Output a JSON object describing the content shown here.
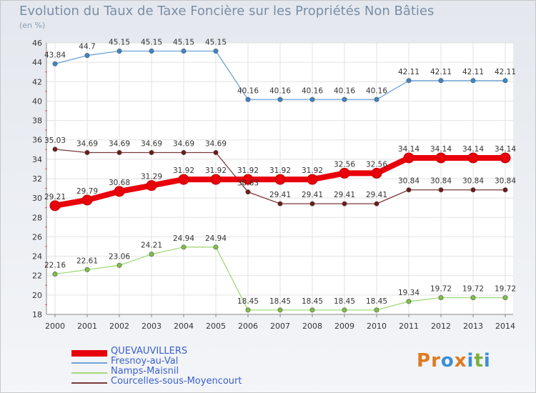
{
  "title": "Evolution du Taux de Taxe Foncière sur les Propriétés Non Bâties",
  "unit_label": "(en %)",
  "logo": {
    "text": "Proxiti",
    "letters": [
      "P",
      "r",
      "o",
      "x",
      "i",
      "t",
      "i"
    ],
    "colors": [
      "#e07a1f",
      "#e07a1f",
      "#3c8fd4",
      "#e07a1f",
      "#3c8fd4",
      "#7ab03a",
      "#3c8fd4"
    ]
  },
  "chart_data": {
    "type": "line",
    "title": "Evolution du Taux de Taxe Foncière sur les Propriétés Non Bâties",
    "ylabel": "(en %)",
    "xlabel": "",
    "ylim": [
      18,
      46
    ],
    "yticks": [
      18,
      20,
      22,
      24,
      26,
      28,
      30,
      32,
      34,
      36,
      38,
      40,
      42,
      44,
      46
    ],
    "categories": [
      "2000",
      "2001",
      "2002",
      "2003",
      "2004",
      "2005",
      "2006",
      "2007",
      "2008",
      "2009",
      "2010",
      "2011",
      "2012",
      "2013",
      "2014"
    ],
    "grid": true,
    "series": [
      {
        "name": "QUEVAUVILLERS",
        "color": "#e8000b",
        "marker": "#e8000b",
        "values": [
          29.21,
          29.79,
          30.68,
          31.29,
          31.92,
          31.92,
          31.92,
          31.92,
          31.92,
          32.56,
          32.56,
          34.14,
          34.14,
          34.14,
          34.14
        ],
        "labels": [
          "29.21",
          "29.79",
          "30.68",
          "31.29",
          "31.92",
          "31.92",
          "31.92",
          "31.92",
          "31.92",
          "32.56",
          "32.56",
          "34.14",
          "34.14",
          "34.14",
          "34.14"
        ]
      },
      {
        "name": "Fresnoy-au-Val",
        "color": "#6fa3d8",
        "marker": "#3a86c8",
        "values": [
          43.84,
          44.7,
          45.15,
          45.15,
          45.15,
          45.15,
          40.16,
          40.16,
          40.16,
          40.16,
          40.16,
          42.11,
          42.11,
          42.11,
          42.11
        ],
        "labels": [
          "43.84",
          "44.7",
          "45.15",
          "45.15",
          "45.15",
          "45.15",
          "40.16",
          "40.16",
          "40.16",
          "40.16",
          "40.16",
          "42.11",
          "42.11",
          "42.11",
          "42.11"
        ]
      },
      {
        "name": "Namps-Maisnil",
        "color": "#a3d97a",
        "marker": "#7ac043",
        "values": [
          22.16,
          22.61,
          23.06,
          24.21,
          24.94,
          24.94,
          18.45,
          18.45,
          18.45,
          18.45,
          18.45,
          19.34,
          19.72,
          19.72,
          19.72
        ],
        "labels": [
          "22.16",
          "22.61",
          "23.06",
          "24.21",
          "24.94",
          "24.94",
          "18.45",
          "18.45",
          "18.45",
          "18.45",
          "18.45",
          "19.34",
          "19.72",
          "19.72",
          "19.72"
        ]
      },
      {
        "name": "Courcelles-sous-Moyencourt",
        "color": "#7a3a3a",
        "marker": "#6e1a1a",
        "values": [
          35.03,
          34.69,
          34.69,
          34.69,
          34.69,
          34.69,
          30.63,
          29.41,
          29.41,
          29.41,
          29.41,
          30.84,
          30.84,
          30.84,
          30.84
        ],
        "labels": [
          "35.03",
          "34.69",
          "34.69",
          "34.69",
          "34.69",
          "34.69",
          "30.63",
          "29.41",
          "29.41",
          "29.41",
          "29.41",
          "30.84",
          "30.84",
          "30.84",
          "30.84"
        ]
      }
    ]
  },
  "legend": [
    {
      "name": "QUEVAUVILLERS",
      "color": "#e8000b"
    },
    {
      "name": "Fresnoy-au-Val",
      "color": "#6fa3d8"
    },
    {
      "name": "Namps-Maisnil",
      "color": "#a3d97a"
    },
    {
      "name": "Courcelles-sous-Moyencourt",
      "color": "#7a3a3a"
    }
  ]
}
